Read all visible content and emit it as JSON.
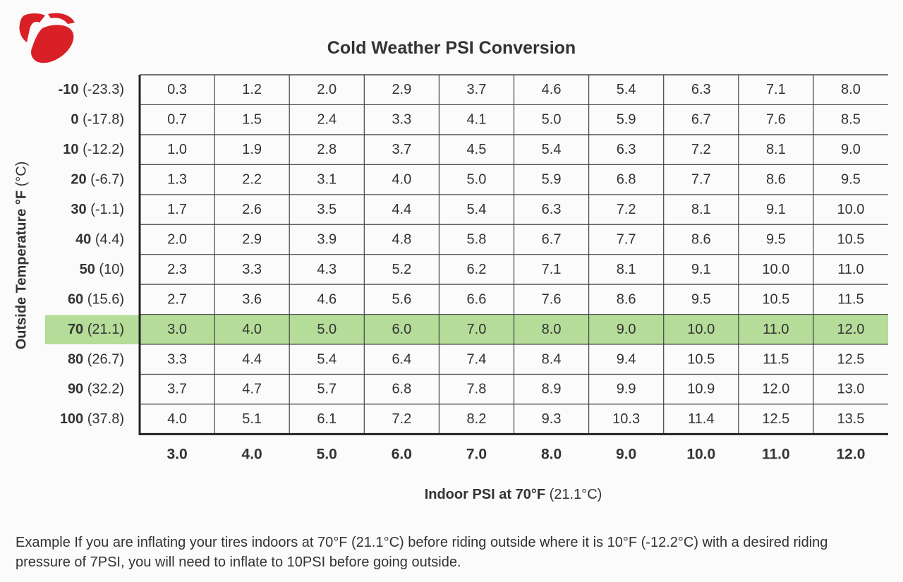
{
  "colors": {
    "logo": "#d92027",
    "highlight_row": "#b5dc98",
    "grid_line": "#444444",
    "axis_frame": "#222222"
  },
  "title": "Cold Weather PSI Conversion",
  "y_axis_label": {
    "bold": "Outside Temperature °F",
    "plain": " (°C)"
  },
  "x_axis_label": {
    "bold": "Indoor PSI at 70°F",
    "plain": " (21.1°C)"
  },
  "example_text": "Example  If you are inflating your tires indoors at 70°F (21.1°C) before riding outside where it is 10°F (-12.2°C) with a desired riding pressure of 7PSI, you will need to inflate to 10PSI before going outside.",
  "chart_data": {
    "type": "table",
    "title": "Cold Weather PSI Conversion",
    "xlabel": "Indoor PSI at 70°F (21.1°C)",
    "ylabel": "Outside Temperature °F (°C)",
    "highlighted_row": "70",
    "columns": [
      "3.0",
      "4.0",
      "5.0",
      "6.0",
      "7.0",
      "8.0",
      "9.0",
      "10.0",
      "11.0",
      "12.0"
    ],
    "rows": [
      {
        "f": "-10",
        "c": "(-23.3)",
        "values": [
          "0.3",
          "1.2",
          "2.0",
          "2.9",
          "3.7",
          "4.6",
          "5.4",
          "6.3",
          "7.1",
          "8.0"
        ]
      },
      {
        "f": "0",
        "c": "(-17.8)",
        "values": [
          "0.7",
          "1.5",
          "2.4",
          "3.3",
          "4.1",
          "5.0",
          "5.9",
          "6.7",
          "7.6",
          "8.5"
        ]
      },
      {
        "f": "10",
        "c": "(-12.2)",
        "values": [
          "1.0",
          "1.9",
          "2.8",
          "3.7",
          "4.5",
          "5.4",
          "6.3",
          "7.2",
          "8.1",
          "9.0"
        ]
      },
      {
        "f": "20",
        "c": "(-6.7)",
        "values": [
          "1.3",
          "2.2",
          "3.1",
          "4.0",
          "5.0",
          "5.9",
          "6.8",
          "7.7",
          "8.6",
          "9.5"
        ]
      },
      {
        "f": "30",
        "c": "(-1.1)",
        "values": [
          "1.7",
          "2.6",
          "3.5",
          "4.4",
          "5.4",
          "6.3",
          "7.2",
          "8.1",
          "9.1",
          "10.0"
        ]
      },
      {
        "f": "40",
        "c": "(4.4)",
        "values": [
          "2.0",
          "2.9",
          "3.9",
          "4.8",
          "5.8",
          "6.7",
          "7.7",
          "8.6",
          "9.5",
          "10.5"
        ]
      },
      {
        "f": "50",
        "c": "(10)",
        "values": [
          "2.3",
          "3.3",
          "4.3",
          "5.2",
          "6.2",
          "7.1",
          "8.1",
          "9.1",
          "10.0",
          "11.0"
        ]
      },
      {
        "f": "60",
        "c": "(15.6)",
        "values": [
          "2.7",
          "3.6",
          "4.6",
          "5.6",
          "6.6",
          "7.6",
          "8.6",
          "9.5",
          "10.5",
          "11.5"
        ]
      },
      {
        "f": "70",
        "c": "(21.1)",
        "values": [
          "3.0",
          "4.0",
          "5.0",
          "6.0",
          "7.0",
          "8.0",
          "9.0",
          "10.0",
          "11.0",
          "12.0"
        ]
      },
      {
        "f": "80",
        "c": "(26.7)",
        "values": [
          "3.3",
          "4.4",
          "5.4",
          "6.4",
          "7.4",
          "8.4",
          "9.4",
          "10.5",
          "11.5",
          "12.5"
        ]
      },
      {
        "f": "90",
        "c": "(32.2)",
        "values": [
          "3.7",
          "4.7",
          "5.7",
          "6.8",
          "7.8",
          "8.9",
          "9.9",
          "10.9",
          "12.0",
          "13.0"
        ]
      },
      {
        "f": "100",
        "c": "(37.8)",
        "values": [
          "4.0",
          "5.1",
          "6.1",
          "7.2",
          "8.2",
          "9.3",
          "10.3",
          "11.4",
          "12.5",
          "13.5"
        ]
      }
    ]
  }
}
